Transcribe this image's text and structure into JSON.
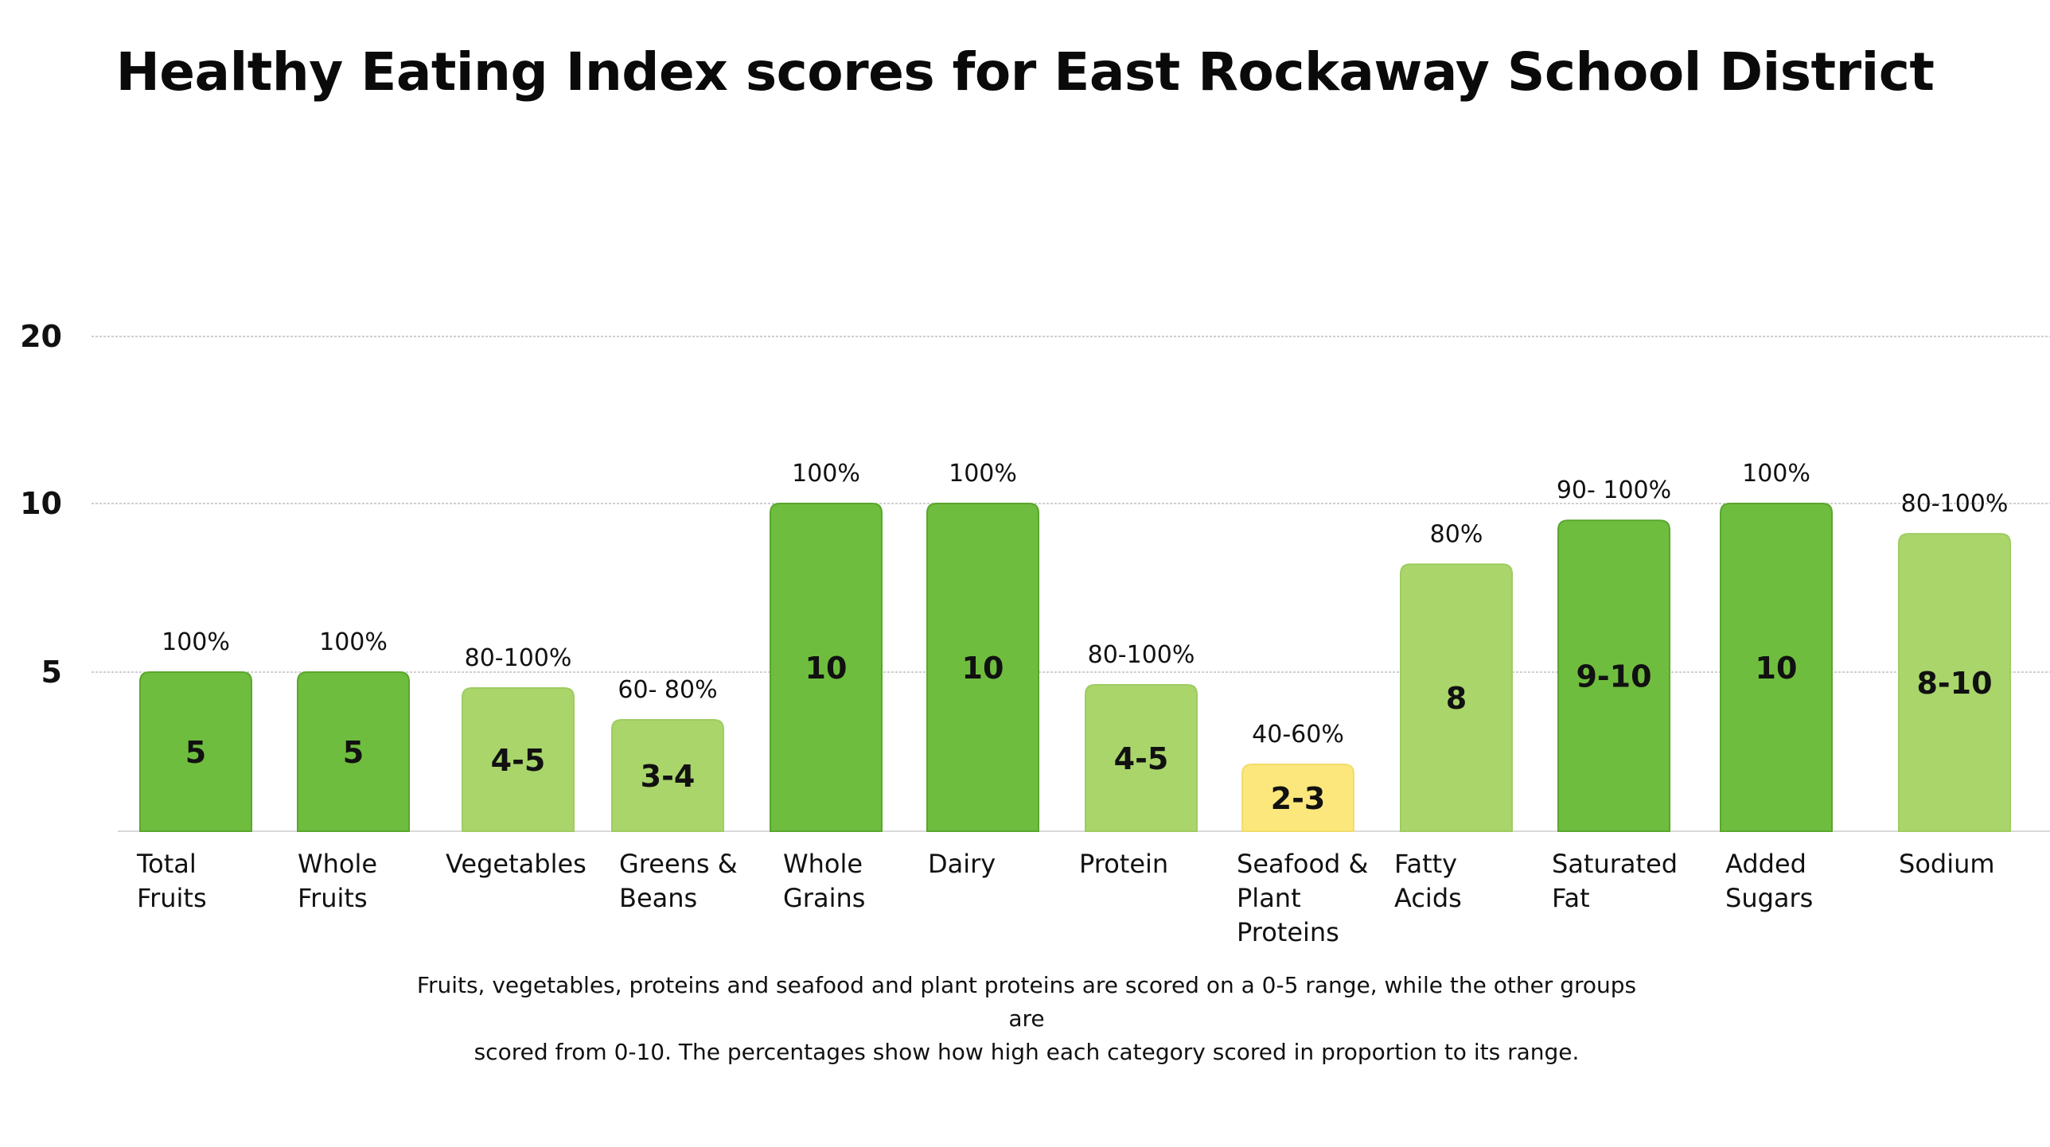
{
  "chart_data": {
    "type": "bar",
    "title": "Healthy Eating Index scores for East Rockaway School District",
    "xlabel": "",
    "ylabel": "",
    "yticks": [
      5,
      10,
      20
    ],
    "ylim": [
      0,
      20
    ],
    "categories": [
      [
        "Total",
        "Fruits"
      ],
      [
        "Whole",
        "Fruits"
      ],
      [
        "Vegetables"
      ],
      [
        "Greens &",
        "Beans"
      ],
      [
        "Whole",
        "Grains"
      ],
      [
        "Dairy"
      ],
      [
        "Protein"
      ],
      [
        "Seafood &",
        "Plant",
        "Proteins"
      ],
      [
        "Fatty",
        "Acids"
      ],
      [
        "Saturated",
        "Fat"
      ],
      [
        "Added",
        "Sugars"
      ],
      [
        "Sodium"
      ]
    ],
    "values": [
      5,
      5,
      4.5,
      3.5,
      10,
      10,
      4.6,
      2.1,
      8.2,
      9.5,
      10,
      9.1
    ],
    "value_labels": [
      "5",
      "5",
      "4-5",
      "3-4",
      "10",
      "10",
      "4-5",
      "2-3",
      "8",
      "9-10",
      "10",
      "8-10"
    ],
    "percent_labels": [
      "100%",
      "100%",
      "80-100%",
      "60- 80%",
      "100%",
      "100%",
      "80-100%",
      "40-60%",
      "80%",
      "90- 100%",
      "100%",
      "80-100%"
    ],
    "bar_colors": [
      "#6fbd3e",
      "#6fbd3e",
      "#a9d56b",
      "#a9d56b",
      "#6fbd3e",
      "#6fbd3e",
      "#a9d56b",
      "#fbe77c",
      "#a9d56b",
      "#6fbd3e",
      "#6fbd3e",
      "#a9d56b"
    ],
    "grid": true,
    "footnote": [
      "Fruits, vegetables, proteins and seafood and plant proteins are scored on a 0-5 range, while the other groups are",
      "scored from 0-10. The percentages show how high each category scored in proportion to its range."
    ]
  }
}
